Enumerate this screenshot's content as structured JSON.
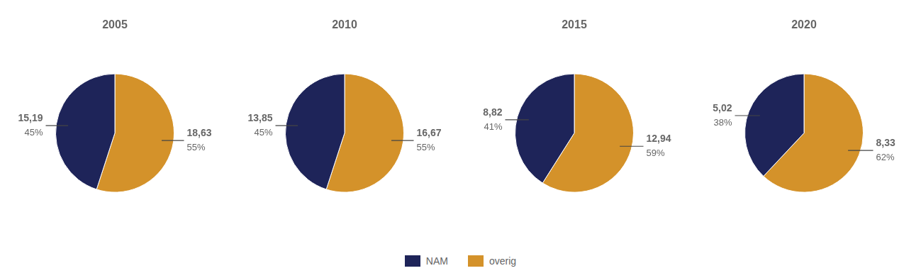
{
  "chart_data": [
    {
      "type": "pie",
      "title": "2005",
      "categories": [
        "overig",
        "NAM"
      ],
      "values": [
        55,
        45
      ],
      "value_labels": [
        "55%",
        "45%"
      ],
      "amounts": [
        18.63,
        15.19
      ],
      "amount_labels": [
        "18,63",
        "15,19"
      ],
      "colors": [
        "#d4922a",
        "#1e2459"
      ],
      "data_labels": true,
      "legend": "bottom"
    },
    {
      "type": "pie",
      "title": "2010",
      "categories": [
        "overig",
        "NAM"
      ],
      "values": [
        55,
        45
      ],
      "value_labels": [
        "55%",
        "45%"
      ],
      "amounts": [
        16.67,
        13.85
      ],
      "amount_labels": [
        "16,67",
        "13,85"
      ],
      "colors": [
        "#d4922a",
        "#1e2459"
      ],
      "data_labels": true,
      "legend": "bottom"
    },
    {
      "type": "pie",
      "title": "2015",
      "categories": [
        "overig",
        "NAM"
      ],
      "values": [
        59,
        41
      ],
      "value_labels": [
        "59%",
        "41%"
      ],
      "amounts": [
        12.94,
        8.82
      ],
      "amount_labels": [
        "12,94",
        "8,82"
      ],
      "colors": [
        "#d4922a",
        "#1e2459"
      ],
      "data_labels": true,
      "legend": "bottom"
    },
    {
      "type": "pie",
      "title": "2020",
      "categories": [
        "overig",
        "NAM"
      ],
      "values": [
        62,
        38
      ],
      "value_labels": [
        "62%",
        "38%"
      ],
      "amounts": [
        8.33,
        5.02
      ],
      "amount_labels": [
        "8,33",
        "5,02"
      ],
      "colors": [
        "#d4922a",
        "#1e2459"
      ],
      "data_labels": true,
      "legend": "bottom"
    }
  ]
}
